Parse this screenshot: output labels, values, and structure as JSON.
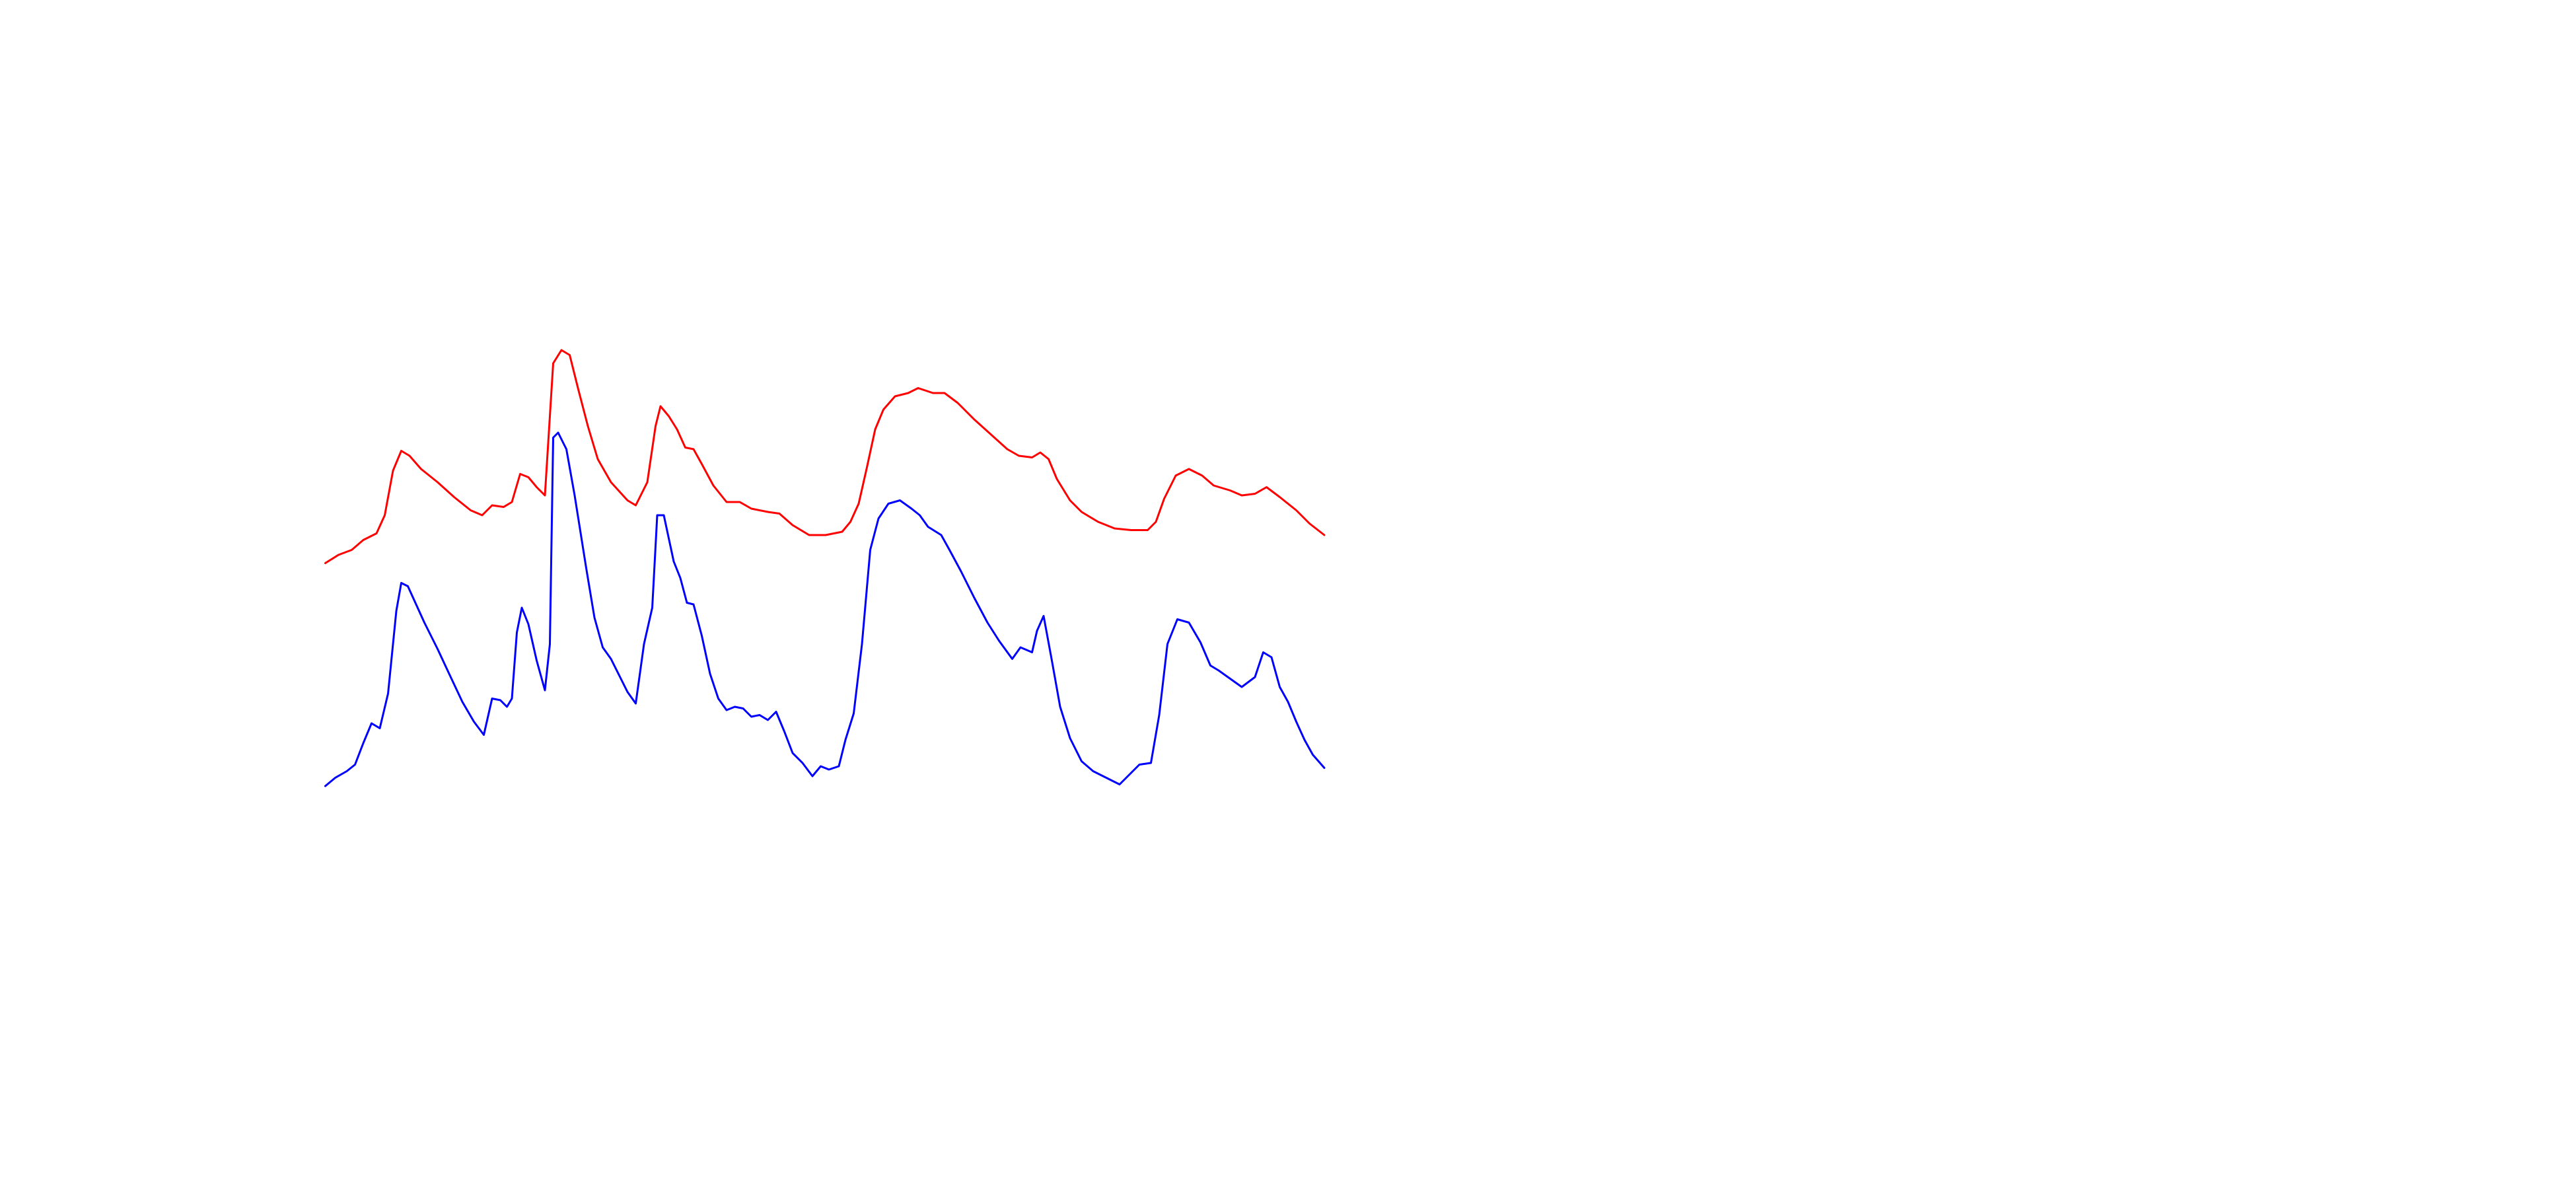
{
  "chart_data": {
    "type": "line",
    "series": [
      {
        "color": "#ff0000",
        "x": [
          0,
          8,
          16,
          23,
          31,
          36,
          41,
          46,
          51,
          58,
          68,
          78,
          88,
          95,
          101,
          108,
          113,
          118,
          123,
          128,
          133,
          138,
          143,
          148,
          153,
          159,
          165,
          173,
          183,
          188,
          195,
          200,
          203,
          208,
          213,
          218,
          223,
          228,
          235,
          243,
          251,
          258,
          268,
          275,
          283,
          293,
          303,
          313,
          318,
          323,
          328,
          333,
          338,
          345,
          353,
          359,
          368,
          375,
          383,
          393,
          403,
          413,
          420,
          428,
          433,
          438,
          443,
          451,
          458,
          468,
          478,
          488,
          498,
          503,
          508,
          515,
          523,
          531,
          538,
          548,
          555,
          563,
          570,
          578,
          588,
          596,
          605
        ],
        "values": [
          139,
          144,
          147,
          153,
          157,
          168,
          195,
          207,
          204,
          196,
          188,
          179,
          171,
          168,
          174,
          173,
          176,
          193,
          191,
          185,
          180,
          260,
          268,
          265,
          245,
          222,
          202,
          188,
          177,
          174,
          188,
          222,
          234,
          228,
          220,
          209,
          208,
          199,
          186,
          176,
          176,
          172,
          170,
          169,
          162,
          156,
          156,
          158,
          164,
          175,
          197,
          220,
          232,
          240,
          242,
          245,
          242,
          242,
          236,
          226,
          217,
          208,
          204,
          203,
          206,
          202,
          190,
          177,
          170,
          164,
          160,
          159,
          159,
          164,
          178,
          192,
          196,
          192,
          186,
          183,
          180,
          181,
          185,
          179,
          171,
          163,
          156
        ]
      },
      {
        "color": "#0000ff",
        "x": [
          0,
          6,
          13,
          18,
          23,
          28,
          33,
          38,
          43,
          46,
          50,
          55,
          60,
          68,
          75,
          83,
          90,
          96,
          101,
          106,
          110,
          113,
          116,
          119,
          123,
          128,
          133,
          136,
          138,
          141,
          146,
          151,
          158,
          163,
          168,
          173,
          178,
          183,
          188,
          193,
          198,
          201,
          205,
          211,
          215,
          219,
          223,
          228,
          233,
          238,
          243,
          248,
          253,
          258,
          263,
          268,
          273,
          278,
          283,
          289,
          295,
          300,
          305,
          311,
          315,
          320,
          325,
          330,
          335,
          341,
          348,
          355,
          360,
          365,
          373,
          378,
          385,
          393,
          401,
          408,
          416,
          421,
          428,
          431,
          435,
          440,
          445,
          451,
          458,
          465,
          475,
          481,
          486,
          493,
          500,
          505,
          510,
          516,
          523,
          530,
          536,
          541,
          548,
          555,
          563,
          568,
          573,
          578,
          583,
          588,
          593,
          598,
          605
        ],
        "values": [
          4,
          9,
          13,
          17,
          30,
          42,
          39,
          60,
          110,
          127,
          125,
          114,
          103,
          87,
          72,
          55,
          43,
          35,
          57,
          56,
          52,
          57,
          97,
          112,
          102,
          80,
          62,
          90,
          215,
          218,
          208,
          180,
          136,
          106,
          88,
          81,
          71,
          61,
          54,
          90,
          112,
          168,
          168,
          140,
          130,
          115,
          114,
          95,
          72,
          57,
          50,
          52,
          51,
          46,
          47,
          44,
          49,
          37,
          24,
          18,
          10,
          16,
          14,
          16,
          32,
          48,
          90,
          147,
          166,
          175,
          177,
          172,
          168,
          161,
          156,
          147,
          134,
          118,
          103,
          92,
          81,
          88,
          85,
          98,
          107,
          80,
          52,
          33,
          19,
          13,
          8,
          5,
          10,
          17,
          18,
          47,
          90,
          105,
          103,
          91,
          77,
          74,
          69,
          64,
          70,
          85,
          82,
          64,
          55,
          43,
          32,
          23,
          15
        ]
      }
    ]
  }
}
